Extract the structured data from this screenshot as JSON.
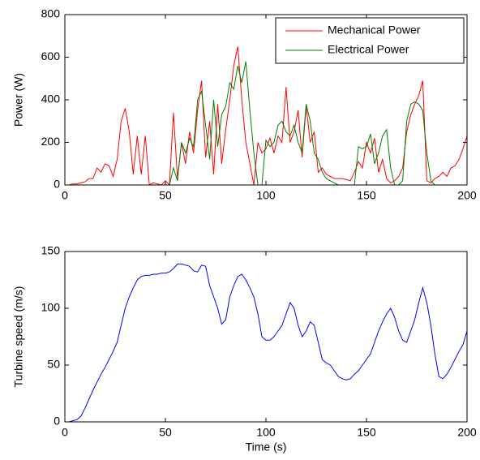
{
  "chart_data": [
    {
      "type": "line",
      "ylabel": "Power (W)",
      "x": [
        0,
        2,
        4,
        6,
        8,
        10,
        12,
        14,
        16,
        18,
        20,
        22,
        24,
        26,
        28,
        30,
        32,
        34,
        36,
        38,
        40,
        42,
        44,
        46,
        48,
        50,
        52,
        54,
        56,
        58,
        60,
        62,
        64,
        66,
        68,
        70,
        72,
        74,
        76,
        78,
        80,
        82,
        84,
        86,
        88,
        90,
        92,
        94,
        96,
        98,
        100,
        102,
        104,
        106,
        108,
        110,
        112,
        114,
        116,
        118,
        120,
        122,
        124,
        126,
        128,
        130,
        132,
        134,
        136,
        138,
        140,
        142,
        144,
        146,
        148,
        150,
        152,
        154,
        156,
        158,
        160,
        162,
        164,
        166,
        168,
        170,
        172,
        174,
        176,
        178,
        180,
        182,
        184,
        186,
        188,
        190,
        192,
        194,
        196,
        198,
        200
      ],
      "series": [
        {
          "name": "Mechanical Power",
          "color": "#ff0000",
          "values": [
            0,
            0,
            5,
            5,
            10,
            15,
            30,
            30,
            80,
            60,
            100,
            90,
            40,
            120,
            300,
            360,
            250,
            50,
            230,
            50,
            230,
            0,
            10,
            5,
            0,
            20,
            0,
            340,
            30,
            200,
            100,
            250,
            150,
            350,
            490,
            130,
            300,
            50,
            380,
            100,
            260,
            400,
            560,
            650,
            400,
            200,
            100,
            0,
            200,
            150,
            170,
            220,
            150,
            230,
            200,
            460,
            200,
            250,
            350,
            130,
            370,
            200,
            250,
            60,
            80,
            50,
            40,
            30,
            30,
            30,
            25,
            20,
            60,
            110,
            80,
            200,
            150,
            220,
            60,
            120,
            30,
            10,
            20,
            40,
            80,
            250,
            330,
            380,
            420,
            490,
            20,
            10,
            30,
            40,
            60,
            40,
            80,
            90,
            120,
            170,
            230
          ]
        },
        {
          "name": "Electrical Power",
          "color": "#008000",
          "values": [
            0,
            0,
            0,
            0,
            0,
            0,
            0,
            0,
            0,
            0,
            0,
            0,
            0,
            0,
            0,
            0,
            0,
            0,
            0,
            0,
            0,
            0,
            0,
            0,
            0,
            0,
            0,
            80,
            20,
            200,
            150,
            220,
            180,
            400,
            440,
            280,
            120,
            400,
            180,
            330,
            370,
            480,
            450,
            560,
            480,
            580,
            350,
            150,
            0,
            0,
            210,
            180,
            200,
            280,
            300,
            250,
            230,
            280,
            200,
            150,
            380,
            300,
            150,
            120,
            60,
            30,
            20,
            10,
            0,
            0,
            0,
            0,
            0,
            180,
            170,
            180,
            240,
            100,
            150,
            230,
            260,
            80,
            0,
            0,
            20,
            300,
            380,
            390,
            380,
            350,
            150,
            20,
            0,
            0,
            0,
            0,
            0,
            0,
            0,
            0,
            0
          ]
        }
      ],
      "xlim": [
        0,
        200
      ],
      "xticks": [
        0,
        50,
        100,
        150,
        200
      ],
      "ylim": [
        0,
        800
      ],
      "yticks": [
        0,
        200,
        400,
        600,
        800
      ],
      "legend": "upper right"
    },
    {
      "type": "line",
      "ylabel": "Turbine speed (m/s)",
      "xlabel": "Time (s)",
      "x": [
        0,
        2,
        4,
        6,
        8,
        10,
        12,
        14,
        16,
        18,
        20,
        22,
        24,
        26,
        28,
        30,
        32,
        34,
        36,
        38,
        40,
        42,
        44,
        46,
        48,
        50,
        52,
        54,
        56,
        58,
        60,
        62,
        64,
        66,
        68,
        70,
        72,
        74,
        76,
        78,
        80,
        82,
        84,
        86,
        88,
        90,
        92,
        94,
        96,
        98,
        100,
        102,
        104,
        106,
        108,
        110,
        112,
        114,
        116,
        118,
        120,
        122,
        124,
        126,
        128,
        130,
        132,
        134,
        136,
        138,
        140,
        142,
        144,
        146,
        148,
        150,
        152,
        154,
        156,
        158,
        160,
        162,
        164,
        166,
        168,
        170,
        172,
        174,
        176,
        178,
        180,
        182,
        184,
        186,
        188,
        190,
        192,
        194,
        196,
        198,
        200
      ],
      "series": [
        {
          "color": "#0000ff",
          "values": [
            0,
            0,
            1,
            2,
            5,
            12,
            20,
            28,
            35,
            42,
            48,
            55,
            62,
            70,
            85,
            100,
            110,
            118,
            125,
            128,
            129,
            129,
            130,
            130,
            131,
            131,
            132,
            135,
            139,
            139,
            138,
            137,
            133,
            132,
            138,
            137,
            120,
            110,
            100,
            86,
            90,
            110,
            120,
            128,
            130,
            125,
            118,
            110,
            95,
            75,
            72,
            72,
            75,
            80,
            85,
            95,
            105,
            100,
            85,
            75,
            80,
            88,
            85,
            70,
            55,
            52,
            50,
            45,
            40,
            38,
            37,
            38,
            42,
            45,
            50,
            55,
            60,
            70,
            80,
            88,
            95,
            100,
            92,
            80,
            72,
            70,
            80,
            90,
            105,
            118,
            105,
            85,
            60,
            40,
            38,
            42,
            48,
            55,
            62,
            68,
            80
          ]
        }
      ],
      "xlim": [
        0,
        200
      ],
      "xticks": [
        0,
        50,
        100,
        150,
        200
      ],
      "ylim": [
        0,
        150
      ],
      "yticks": [
        0,
        50,
        100,
        150
      ]
    }
  ]
}
